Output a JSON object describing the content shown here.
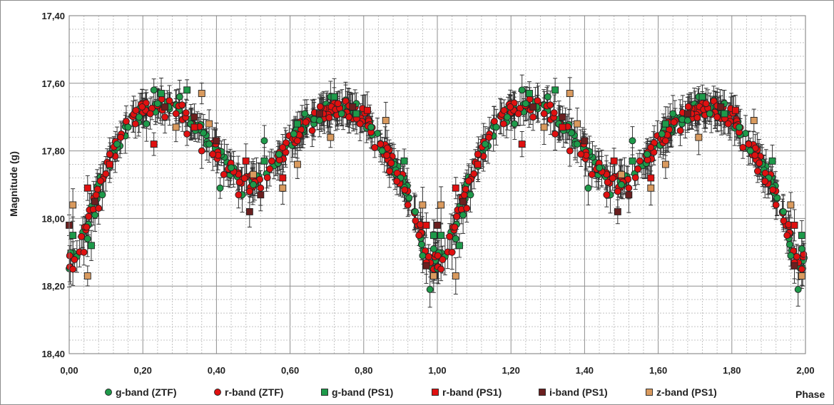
{
  "chart_data": {
    "type": "scatter",
    "title": "",
    "xlabel": "Phase",
    "ylabel": "Magnitude (g)",
    "xlim": [
      0.0,
      2.0
    ],
    "ylim": [
      17.4,
      18.4
    ],
    "y_inverted": true,
    "grid": true,
    "x_ticks": [
      "0,00",
      "0,20",
      "0,40",
      "0,60",
      "0,80",
      "1,00",
      "1,20",
      "1,40",
      "1,60",
      "1,80",
      "2,00"
    ],
    "y_ticks": [
      "17,40",
      "17,60",
      "17,80",
      "18,00",
      "18,20",
      "18,40"
    ],
    "x_tick_values": [
      0.0,
      0.2,
      0.4,
      0.6,
      0.8,
      1.0,
      1.2,
      1.4,
      1.6,
      1.8,
      2.0
    ],
    "y_tick_values": [
      17.4,
      17.6,
      17.8,
      18.0,
      18.2,
      18.4
    ],
    "legend_position": "bottom",
    "light_curve_template": [
      [
        0.0,
        18.13
      ],
      [
        0.03,
        18.08
      ],
      [
        0.06,
        17.98
      ],
      [
        0.1,
        17.85
      ],
      [
        0.15,
        17.74
      ],
      [
        0.2,
        17.68
      ],
      [
        0.25,
        17.66
      ],
      [
        0.3,
        17.68
      ],
      [
        0.35,
        17.73
      ],
      [
        0.4,
        17.8
      ],
      [
        0.44,
        17.86
      ],
      [
        0.48,
        17.89
      ],
      [
        0.52,
        17.89
      ],
      [
        0.56,
        17.84
      ],
      [
        0.6,
        17.77
      ],
      [
        0.65,
        17.71
      ],
      [
        0.7,
        17.68
      ],
      [
        0.75,
        17.67
      ],
      [
        0.8,
        17.7
      ],
      [
        0.84,
        17.76
      ],
      [
        0.88,
        17.84
      ],
      [
        0.92,
        17.92
      ],
      [
        0.95,
        18.02
      ],
      [
        0.97,
        18.12
      ],
      [
        1.0,
        18.13
      ]
    ],
    "series": [
      {
        "name": "g-band (ZTF)",
        "marker": "circle",
        "color": "#1e9a4a",
        "points": [
          [
            0.05,
            18.06
          ],
          [
            0.07,
            17.99
          ],
          [
            0.09,
            17.93
          ],
          [
            0.13,
            17.78
          ],
          [
            0.16,
            17.73
          ],
          [
            0.19,
            17.7
          ],
          [
            0.21,
            17.72
          ],
          [
            0.23,
            17.62
          ],
          [
            0.24,
            17.66
          ],
          [
            0.27,
            17.67
          ],
          [
            0.3,
            17.64
          ],
          [
            0.33,
            17.72
          ],
          [
            0.38,
            17.78
          ],
          [
            0.41,
            17.91
          ],
          [
            0.44,
            17.85
          ],
          [
            0.47,
            17.93
          ],
          [
            0.5,
            17.9
          ],
          [
            0.53,
            17.77
          ],
          [
            0.57,
            17.81
          ],
          [
            0.61,
            17.75
          ],
          [
            0.64,
            17.69
          ],
          [
            0.68,
            17.71
          ],
          [
            0.71,
            17.64
          ],
          [
            0.74,
            17.69
          ],
          [
            0.78,
            17.66
          ],
          [
            0.82,
            17.73
          ],
          [
            0.85,
            17.8
          ],
          [
            0.9,
            17.88
          ],
          [
            0.94,
            17.98
          ],
          [
            0.96,
            18.11
          ],
          [
            0.98,
            18.21
          ],
          [
            0.99,
            18.09
          ]
        ]
      },
      {
        "name": "r-band (ZTF)",
        "marker": "circle",
        "color": "#e01010",
        "points": [
          [
            0.01,
            18.15
          ],
          [
            0.04,
            18.1
          ],
          [
            0.08,
            17.97
          ],
          [
            0.11,
            17.81
          ],
          [
            0.14,
            17.76
          ],
          [
            0.18,
            17.72
          ],
          [
            0.22,
            17.69
          ],
          [
            0.26,
            17.7
          ],
          [
            0.29,
            17.69
          ],
          [
            0.32,
            17.75
          ],
          [
            0.36,
            17.8
          ],
          [
            0.39,
            17.81
          ],
          [
            0.42,
            17.87
          ],
          [
            0.46,
            17.93
          ],
          [
            0.49,
            17.92
          ],
          [
            0.52,
            17.91
          ],
          [
            0.55,
            17.83
          ],
          [
            0.58,
            17.79
          ],
          [
            0.62,
            17.77
          ],
          [
            0.66,
            17.74
          ],
          [
            0.69,
            17.69
          ],
          [
            0.73,
            17.66
          ],
          [
            0.76,
            17.7
          ],
          [
            0.79,
            17.72
          ],
          [
            0.83,
            17.79
          ],
          [
            0.87,
            17.86
          ],
          [
            0.89,
            17.89
          ],
          [
            0.92,
            17.96
          ],
          [
            0.95,
            18.05
          ],
          [
            0.97,
            18.13
          ],
          [
            0.99,
            18.15
          ]
        ]
      },
      {
        "name": "g-band (PS1)",
        "marker": "square",
        "color": "#1e9a4a",
        "points": [
          [
            0.01,
            18.05
          ],
          [
            0.06,
            18.08
          ],
          [
            0.25,
            17.63
          ],
          [
            0.32,
            17.62
          ],
          [
            0.53,
            17.83
          ],
          [
            0.62,
            17.72
          ],
          [
            0.72,
            17.64
          ],
          [
            0.78,
            17.69
          ],
          [
            0.91,
            17.83
          ],
          [
            0.99,
            18.05
          ]
        ]
      },
      {
        "name": "r-band (PS1)",
        "marker": "square",
        "color": "#e01010",
        "points": [
          [
            0.05,
            17.91
          ],
          [
            0.11,
            17.84
          ],
          [
            0.23,
            17.78
          ],
          [
            0.34,
            17.73
          ],
          [
            0.48,
            17.83
          ],
          [
            0.58,
            17.88
          ],
          [
            0.81,
            17.68
          ],
          [
            0.97,
            18.02
          ]
        ]
      },
      {
        "name": "i-band (PS1)",
        "marker": "square",
        "color": "#6b1f1f",
        "points": [
          [
            0.0,
            18.02
          ],
          [
            0.07,
            17.95
          ],
          [
            0.26,
            17.67
          ],
          [
            0.34,
            17.7
          ],
          [
            0.4,
            17.77
          ],
          [
            0.49,
            17.98
          ],
          [
            0.52,
            17.93
          ],
          [
            0.68,
            17.69
          ],
          [
            0.77,
            17.67
          ],
          [
            0.97,
            18.14
          ]
        ]
      },
      {
        "name": "z-band (PS1)",
        "marker": "square",
        "color": "#d99a5e",
        "points": [
          [
            0.01,
            17.96
          ],
          [
            0.05,
            18.17
          ],
          [
            0.29,
            17.73
          ],
          [
            0.36,
            17.63
          ],
          [
            0.38,
            17.72
          ],
          [
            0.5,
            17.87
          ],
          [
            0.58,
            17.91
          ],
          [
            0.62,
            17.84
          ],
          [
            0.71,
            17.76
          ],
          [
            0.86,
            17.71
          ],
          [
            0.96,
            17.96
          ],
          [
            0.99,
            18.17
          ]
        ]
      }
    ]
  }
}
